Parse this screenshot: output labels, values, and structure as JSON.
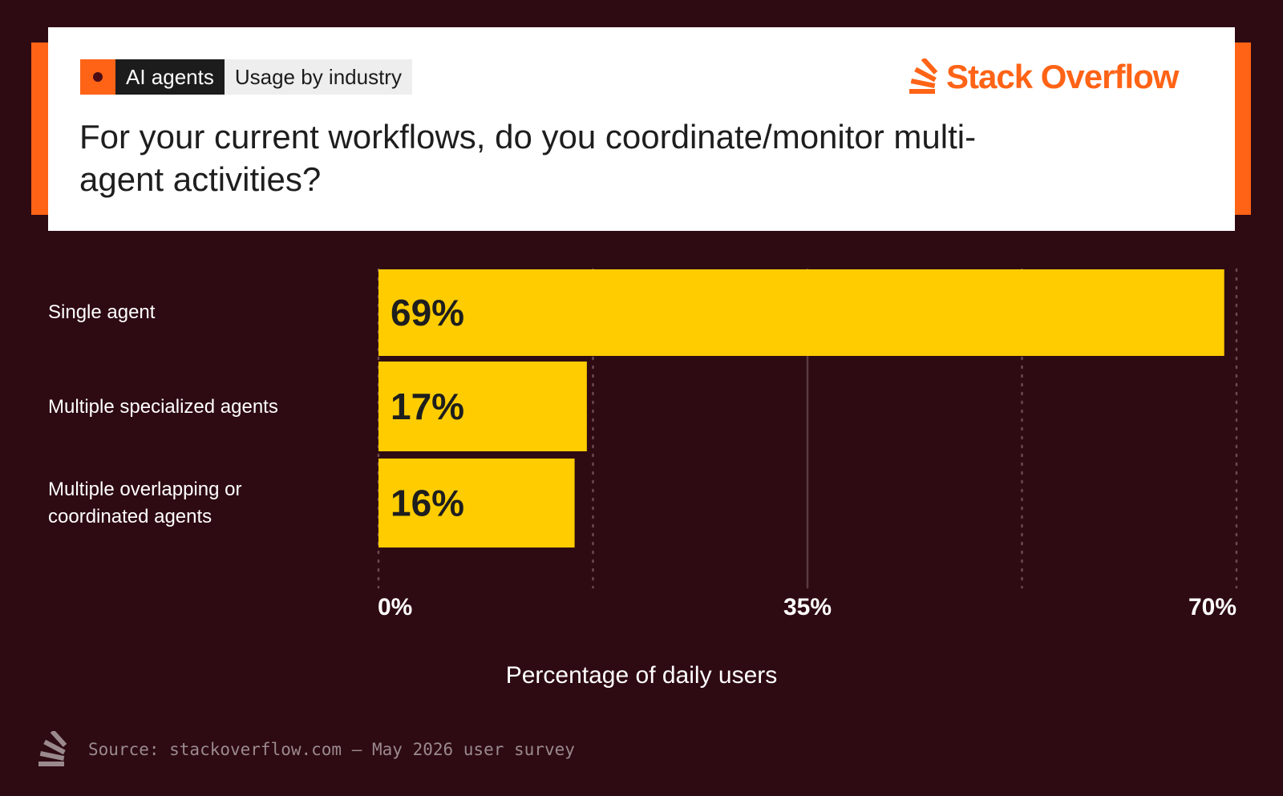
{
  "header": {
    "tag_topic": "AI agents",
    "tag_subtopic": "Usage by industry",
    "brand": "Stack Overflow",
    "question": "For your current workflows, do you coordinate/monitor multi-agent activities?"
  },
  "footer": {
    "source": "Source: stackoverflow.com – May 2026 user survey"
  },
  "colors": {
    "background": "#2e0a12",
    "accent": "#ff6316",
    "bar": "#ffcc00",
    "card": "#ffffff"
  },
  "chart_data": {
    "type": "bar",
    "orientation": "horizontal",
    "categories": [
      "Single agent",
      "Multiple specialized agents",
      "Multiple overlapping or coordinated agents"
    ],
    "values": [
      69,
      17,
      16
    ],
    "value_labels": [
      "69%",
      "17%",
      "16%"
    ],
    "unit": "%",
    "xlabel": "Percentage of daily users",
    "xlim": [
      0,
      70
    ],
    "xticks": [
      0,
      35,
      70
    ],
    "xtick_labels": [
      "0%",
      "35%",
      "70%"
    ],
    "grid": true
  }
}
